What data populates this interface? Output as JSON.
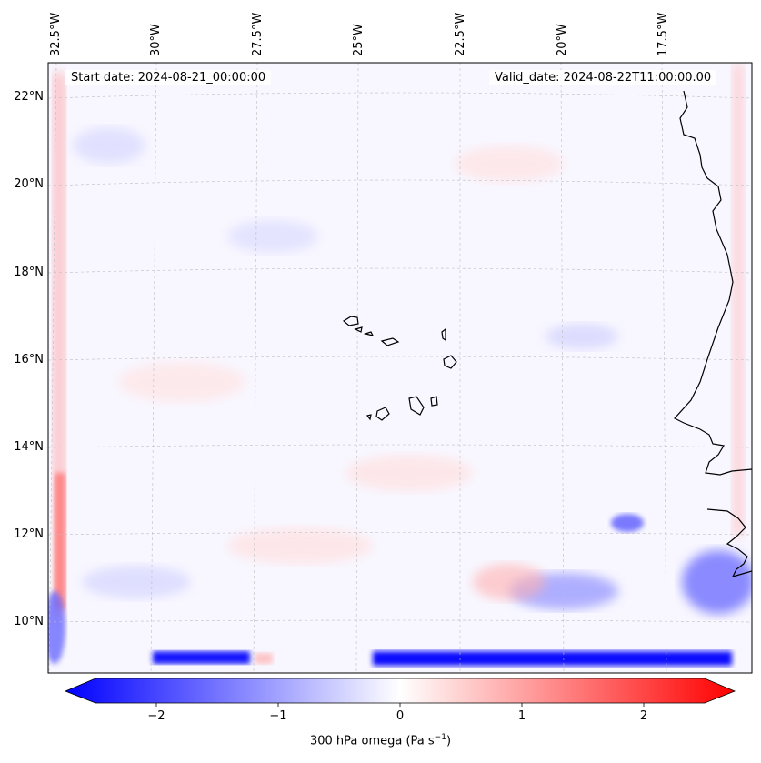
{
  "map": {
    "header": {
      "start_date": "Start date: 2024-08-21_00:00:00",
      "valid_date": "Valid_date: 2024-08-22T11:00:00.00"
    },
    "longitude_labels": [
      "32.5°W",
      "30°W",
      "27.5°W",
      "25°W",
      "22.5°W",
      "20°W",
      "17.5°W"
    ],
    "latitude_labels": [
      "22°N",
      "20°N",
      "18°N",
      "16°N",
      "14°N",
      "12°N",
      "10°N"
    ],
    "colorbar": {
      "ticks": [
        "−2",
        "−1",
        "0",
        "1",
        "2"
      ],
      "label_prefix": "300 hPa omega (Pa s",
      "label_exp": "−1",
      "label_suffix": ")",
      "min_color": "#0000ff",
      "mid_color": "#ffffff",
      "max_color": "#ff0000"
    }
  }
}
